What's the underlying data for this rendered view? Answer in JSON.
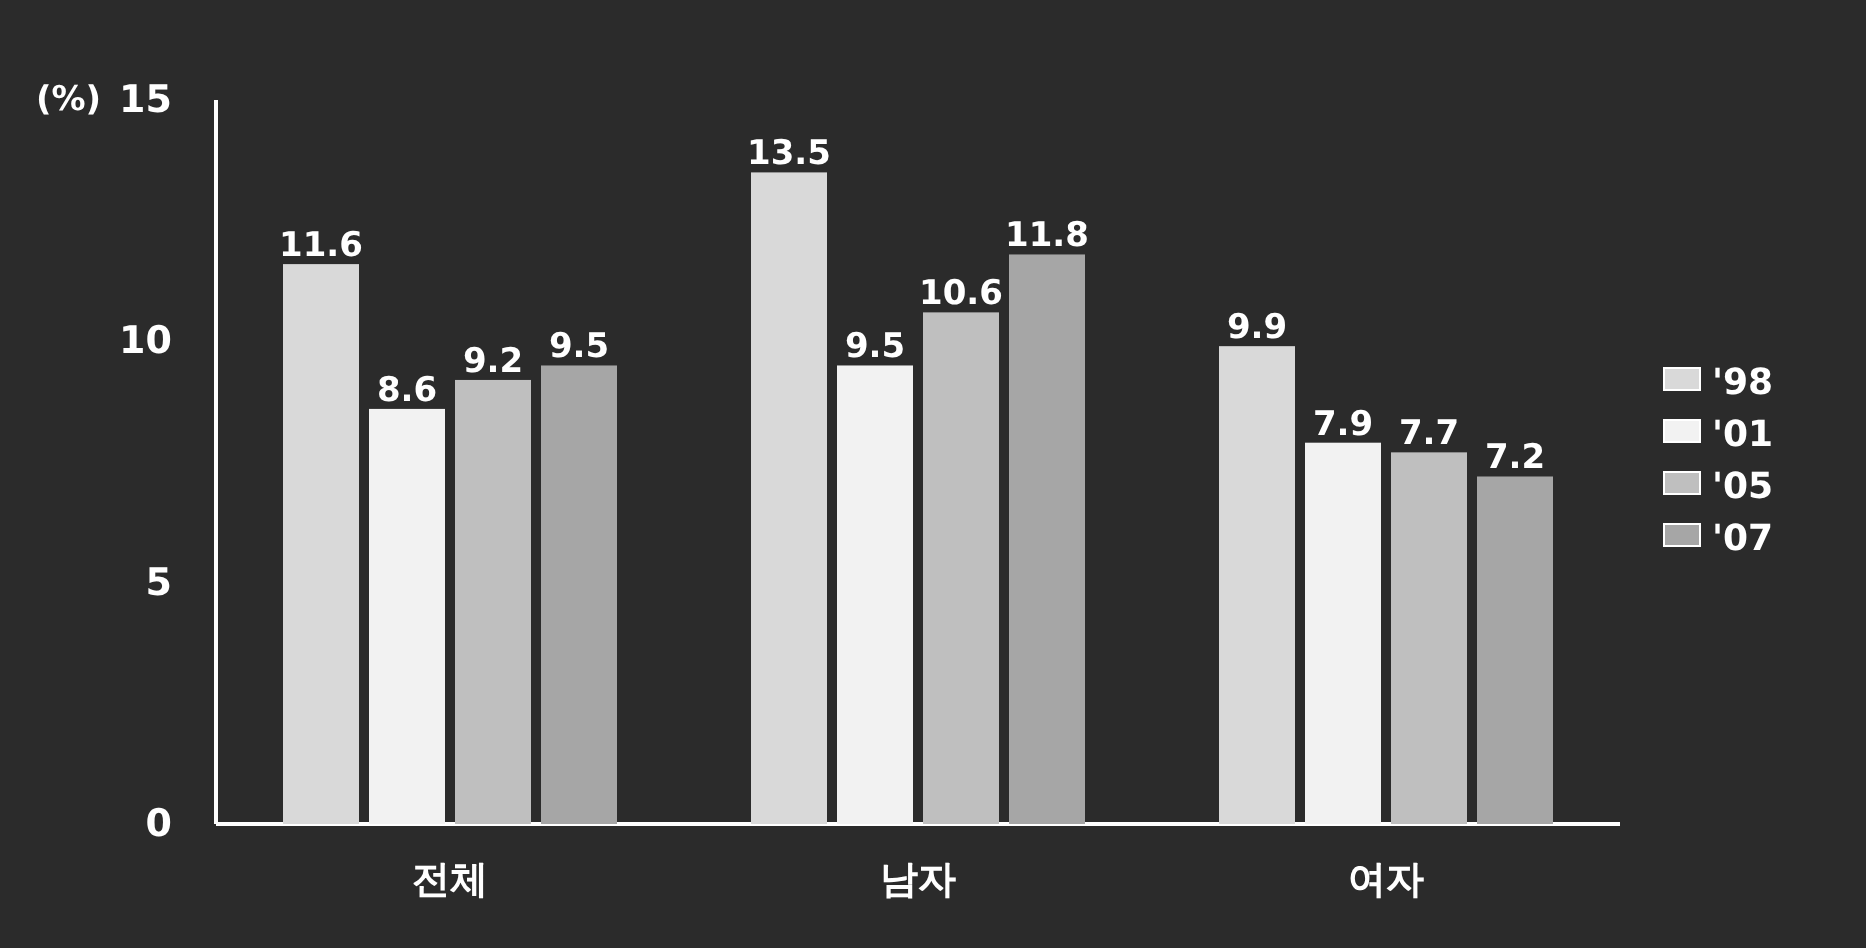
{
  "chart_data": {
    "type": "bar",
    "ylabel": "(%)",
    "categories": [
      "전체",
      "남자",
      "여자"
    ],
    "series": [
      {
        "name": "'98",
        "color": "#d9d9d9",
        "values": [
          11.6,
          13.5,
          9.9
        ]
      },
      {
        "name": "'01",
        "color": "#f2f2f2",
        "values": [
          8.6,
          9.5,
          7.9
        ]
      },
      {
        "name": "'05",
        "color": "#bfbfbf",
        "values": [
          9.2,
          10.6,
          7.7
        ]
      },
      {
        "name": "'07",
        "color": "#a6a6a6",
        "values": [
          9.5,
          11.8,
          7.2
        ]
      }
    ],
    "ylim": [
      0,
      15
    ],
    "yticks": [
      0,
      5,
      10,
      15
    ],
    "data_labels": true,
    "legend": "right",
    "grid": false
  }
}
